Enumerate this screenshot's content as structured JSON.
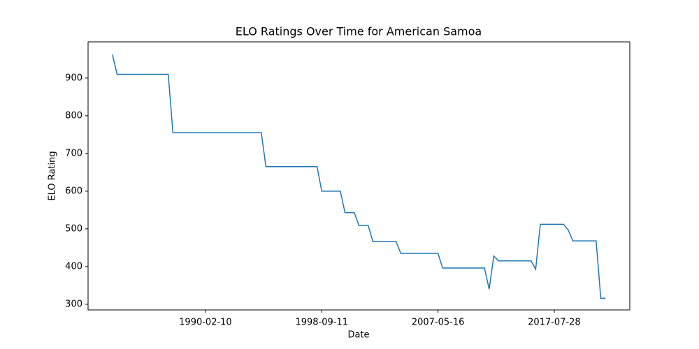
{
  "chart_data": {
    "type": "line",
    "title": "ELO Ratings Over Time for American Samoa",
    "x_label": "Date",
    "y_label": "ELO Rating",
    "categories": [
      null,
      null,
      null,
      null,
      null,
      null,
      null,
      null,
      null,
      null,
      null,
      null,
      null,
      null,
      null,
      null,
      null,
      null,
      null,
      null,
      "1990-02-10",
      null,
      null,
      null,
      null,
      null,
      null,
      null,
      null,
      null,
      null,
      null,
      null,
      null,
      null,
      null,
      null,
      null,
      null,
      null,
      null,
      null,
      null,
      null,
      null,
      "1998-09-11",
      null,
      null,
      null,
      null,
      null,
      null,
      null,
      null,
      null,
      null,
      null,
      null,
      null,
      null,
      null,
      null,
      null,
      null,
      null,
      null,
      null,
      null,
      null,
      null,
      "2007-05-16",
      null,
      null,
      null,
      null,
      null,
      null,
      null,
      null,
      null,
      null,
      null,
      null,
      null,
      null,
      null,
      null,
      null,
      null,
      null,
      null,
      null,
      null,
      null,
      null,
      "2017-07-28",
      null,
      null,
      null,
      null,
      null,
      null,
      null,
      null,
      null,
      null,
      null
    ],
    "series": [
      {
        "name": "ELO Rating",
        "color": "#1f77b4",
        "values": [
          962,
          910,
          910,
          910,
          910,
          910,
          910,
          910,
          910,
          910,
          910,
          910,
          910,
          755,
          755,
          755,
          755,
          755,
          755,
          755,
          755,
          755,
          755,
          755,
          755,
          755,
          755,
          755,
          755,
          755,
          755,
          755,
          755,
          665,
          665,
          665,
          665,
          665,
          665,
          665,
          665,
          665,
          665,
          665,
          665,
          600,
          600,
          600,
          600,
          600,
          543,
          543,
          543,
          509,
          509,
          509,
          466,
          466,
          466,
          466,
          466,
          466,
          435,
          435,
          435,
          435,
          435,
          435,
          435,
          435,
          435,
          396,
          396,
          396,
          396,
          396,
          396,
          396,
          396,
          396,
          396,
          340,
          428,
          415,
          415,
          415,
          415,
          415,
          415,
          415,
          415,
          393,
          512,
          512,
          512,
          512,
          512,
          512,
          497,
          468,
          468,
          468,
          468,
          468,
          468,
          316,
          316
        ]
      }
    ],
    "ylim": [
      285,
      996
    ],
    "yticks": [
      300,
      400,
      500,
      600,
      700,
      800,
      900
    ],
    "grid": false
  }
}
